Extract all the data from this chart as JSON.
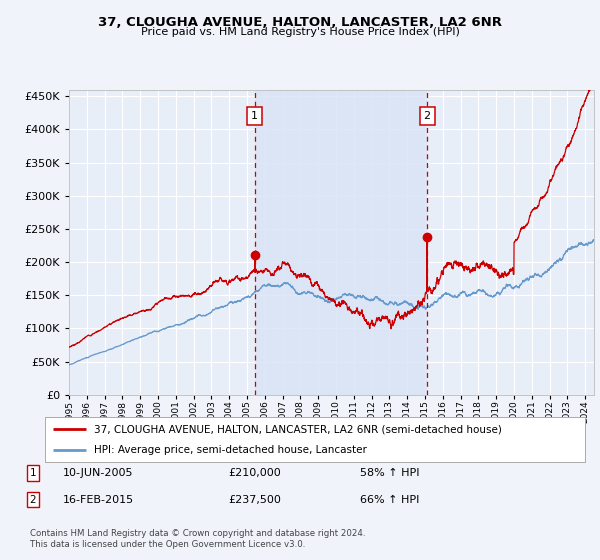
{
  "title": "37, CLOUGHA AVENUE, HALTON, LANCASTER, LA2 6NR",
  "subtitle": "Price paid vs. HM Land Registry's House Price Index (HPI)",
  "red_label": "37, CLOUGHA AVENUE, HALTON, LANCASTER, LA2 6NR (semi-detached house)",
  "blue_label": "HPI: Average price, semi-detached house, Lancaster",
  "annotation1_date": "10-JUN-2005",
  "annotation1_price": "£210,000",
  "annotation1_pct": "58% ↑ HPI",
  "annotation2_date": "16-FEB-2015",
  "annotation2_price": "£237,500",
  "annotation2_pct": "66% ↑ HPI",
  "vline1_x": 2005.44,
  "vline2_x": 2015.12,
  "sale1_y": 210000,
  "sale2_y": 237500,
  "ylim": [
    0,
    460000
  ],
  "xlim_start": 1995.0,
  "xlim_end": 2024.5,
  "footer": "Contains HM Land Registry data © Crown copyright and database right 2024.\nThis data is licensed under the Open Government Licence v3.0.",
  "background_color": "#f0f4fa",
  "plot_bg_color": "#e8eef8",
  "grid_color": "#ffffff",
  "highlight_color": "#dae4f5",
  "red_color": "#cc0000",
  "blue_color": "#6699cc"
}
